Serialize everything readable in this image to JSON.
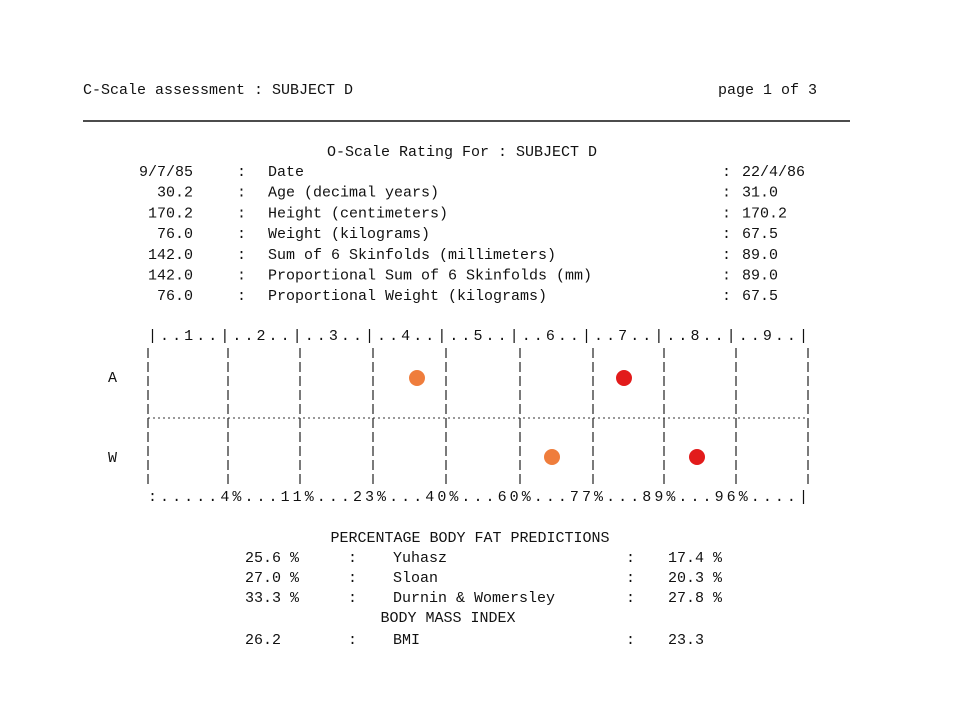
{
  "header": {
    "title": "C-Scale assessment : SUBJECT D",
    "page": "page 1 of 3"
  },
  "separator": ":",
  "rating": {
    "title": "O-Scale Rating For : SUBJECT D",
    "rows": [
      [
        "9/7/85",
        "Date",
        "22/4/86"
      ],
      [
        "30.2",
        "Age (decimal years)",
        "31.0"
      ],
      [
        "170.2",
        "Height (centimeters)",
        "170.2"
      ],
      [
        "76.0",
        "Weight (kilograms)",
        "67.5"
      ],
      [
        "142.0",
        "Sum of 6 Skinfolds (millimeters)",
        "89.0"
      ],
      [
        "142.0",
        "Proportional Sum of 6 Skinfolds (mm)",
        "89.0"
      ],
      [
        "76.0",
        "Proportional Weight (kilograms)",
        "67.5"
      ]
    ]
  },
  "scale": {
    "top": "|..1..|..2..|..3..|..4..|..5..|..6..|..7..|..8..|..9..|",
    "rows": [
      "A",
      "W"
    ],
    "bottom": ":.....4%...11%...23%...40%...60%...77%...89%...96%....|"
  },
  "predictions": {
    "title": "PERCENTAGE BODY FAT PREDICTIONS",
    "rows": [
      [
        "25.6 %",
        "Yuhasz",
        "17.4 %"
      ],
      [
        "27.0 %",
        "Sloan",
        "20.3 %"
      ],
      [
        "33.3 %",
        "Durnin & Womersley",
        "27.8 %"
      ]
    ],
    "bmi_title": "BODY MASS INDEX",
    "bmi": [
      "26.2",
      "BMI",
      "23.3"
    ]
  }
}
